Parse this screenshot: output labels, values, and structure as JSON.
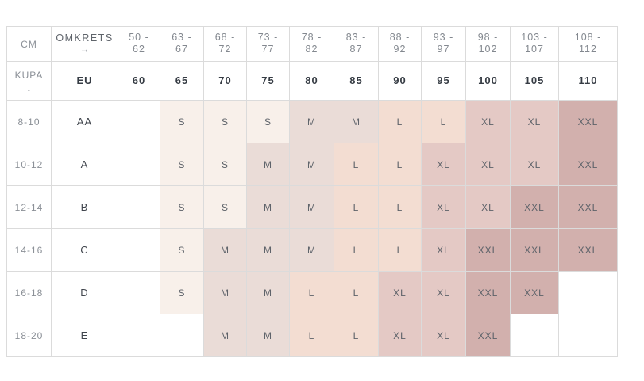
{
  "chart_data": {
    "type": "table",
    "header": {
      "unit_label": "CM",
      "circumference_label": "OMKRETS",
      "circumference_arrow": "→",
      "cup_label": "KUPA",
      "cup_arrow": "↓",
      "eu_label": "EU",
      "cm_ranges": [
        [
          "50 -",
          "62"
        ],
        [
          "63 -",
          "67"
        ],
        [
          "68 -",
          "72"
        ],
        [
          "73 -",
          "77"
        ],
        [
          "78 -",
          "82"
        ],
        [
          "83 -",
          "87"
        ],
        [
          "88 -",
          "92"
        ],
        [
          "93 -",
          "97"
        ],
        [
          "98 -",
          "102"
        ],
        [
          "103 -",
          "107"
        ],
        [
          "108 -",
          "112"
        ]
      ],
      "eu_sizes": [
        "60",
        "65",
        "70",
        "75",
        "80",
        "85",
        "90",
        "95",
        "100",
        "105",
        "110"
      ]
    },
    "rows": [
      {
        "cm": "8-10",
        "cup": "AA",
        "sizes": [
          "",
          "S",
          "S",
          "S",
          "M",
          "M",
          "L",
          "L",
          "XL",
          "XL",
          "XXL"
        ]
      },
      {
        "cm": "10-12",
        "cup": "A",
        "sizes": [
          "",
          "S",
          "S",
          "M",
          "M",
          "L",
          "L",
          "XL",
          "XL",
          "XL",
          "XXL"
        ]
      },
      {
        "cm": "12-14",
        "cup": "B",
        "sizes": [
          "",
          "S",
          "S",
          "M",
          "M",
          "L",
          "L",
          "XL",
          "XL",
          "XXL",
          "XXL"
        ]
      },
      {
        "cm": "14-16",
        "cup": "C",
        "sizes": [
          "",
          "S",
          "M",
          "M",
          "M",
          "L",
          "L",
          "XL",
          "XXL",
          "XXL",
          "XXL"
        ]
      },
      {
        "cm": "16-18",
        "cup": "D",
        "sizes": [
          "",
          "S",
          "M",
          "M",
          "L",
          "L",
          "XL",
          "XL",
          "XXL",
          "XXL",
          ""
        ]
      },
      {
        "cm": "18-20",
        "cup": "E",
        "sizes": [
          "",
          "",
          "M",
          "M",
          "L",
          "L",
          "XL",
          "XL",
          "XXL",
          "",
          ""
        ]
      }
    ],
    "size_colors": {
      "S": "#f8f0ea",
      "M": "#eadcd7",
      "L": "#f3ddd2",
      "XL": "#e4c9c5",
      "XXL": "#d2b0ad",
      "empty": "#ffffff"
    },
    "border_color": "#dbdbdb"
  }
}
